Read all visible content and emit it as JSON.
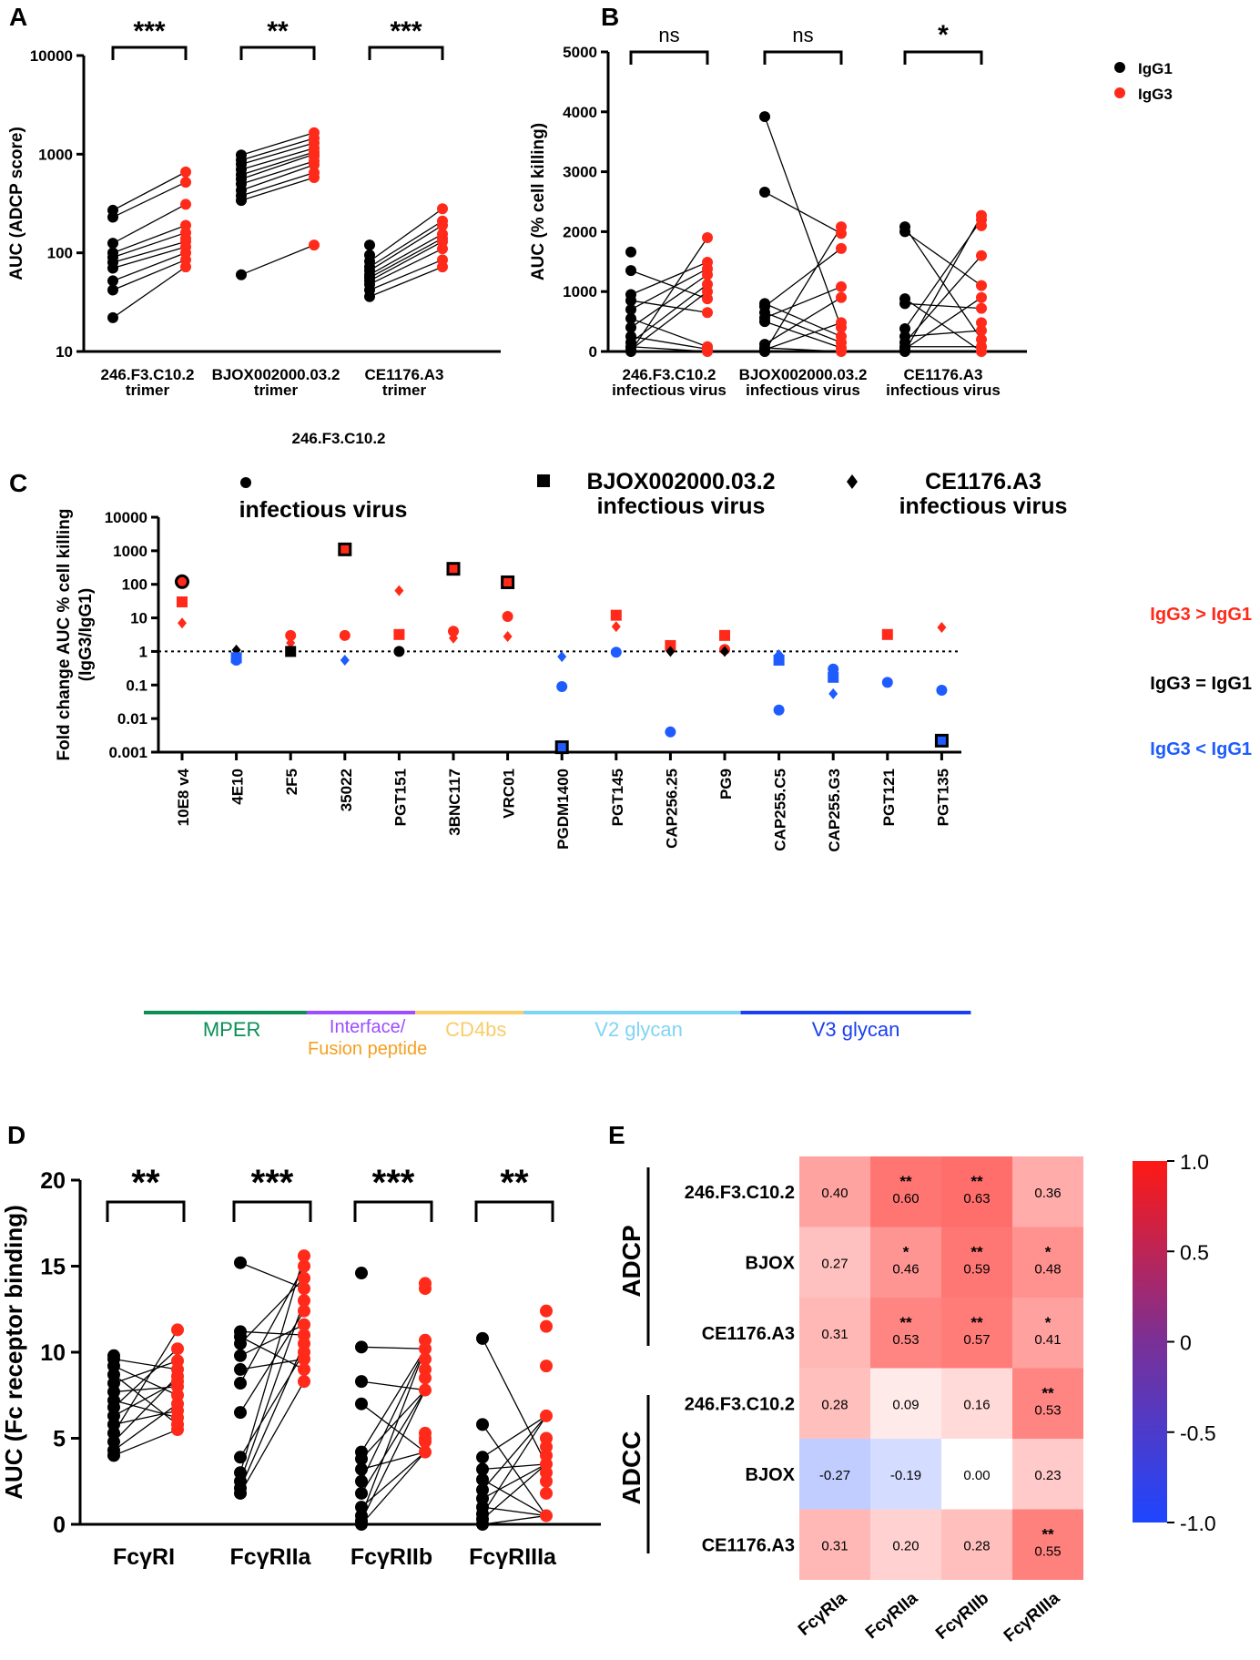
{
  "colors": {
    "igg1": "#000000",
    "igg3": "#ff2a1a",
    "blue": "#1e5cff",
    "mper": "#0b8f57",
    "interface": "#9b4dff",
    "fusion": "#f5a021",
    "cd4bs": "#f8cd6a",
    "v2": "#7fd4f5",
    "v3": "#1a3ff0"
  },
  "chart_data": [
    {
      "panel": "A",
      "type": "scatter",
      "scale": "log",
      "ylabel": "AUC (ADCP score)",
      "ylim": [
        10,
        10000
      ],
      "yticks": [
        "10",
        "100",
        "1000",
        "10000"
      ],
      "categories": [
        {
          "line1": "246.F3.C10.2",
          "line2": "trimer",
          "sig": "***"
        },
        {
          "line1": "BJOX002000.03.2",
          "line2": "trimer",
          "sig": "**"
        },
        {
          "line1": "CE1176.A3",
          "line2": "trimer",
          "sig": "***"
        }
      ],
      "series": [
        {
          "name": "IgG1",
          "values": [
            [
              22,
              42,
              52,
              70,
              80,
              90,
              100,
              125,
              230,
              270
            ],
            [
              60,
              340,
              380,
              430,
              500,
              560,
              620,
              700,
              790,
              870,
              980
            ],
            [
              36,
              42,
              48,
              52,
              56,
              60,
              66,
              72,
              82,
              95,
              120
            ]
          ]
        },
        {
          "name": "IgG3",
          "values": [
            [
              72,
              85,
              100,
              115,
              130,
              140,
              160,
              190,
              310,
              520,
              660
            ],
            [
              120,
              580,
              650,
              780,
              850,
              950,
              1000,
              1050,
              1150,
              1300,
              1450,
              1650
            ],
            [
              72,
              85,
              110,
              130,
              140,
              155,
              190,
              210,
              280
            ]
          ]
        }
      ]
    },
    {
      "panel": "B",
      "type": "scatter",
      "ylabel": "AUC (% cell killing)",
      "ylim": [
        0,
        5000
      ],
      "yticks": [
        "0",
        "1000",
        "2000",
        "3000",
        "4000",
        "5000"
      ],
      "legend": [
        "IgG1",
        "IgG3"
      ],
      "categories": [
        {
          "line1": "246.F3.C10.2",
          "line2": "infectious virus",
          "sig": "ns"
        },
        {
          "line1": "BJOX002000.03.2",
          "line2": "infectious virus",
          "sig": "ns"
        },
        {
          "line1": "CE1176.A3",
          "line2": "infectious virus",
          "sig": "*"
        }
      ],
      "series": [
        {
          "name": "IgG1",
          "values": [
            [
              0,
              30,
              80,
              150,
              250,
              400,
              550,
              700,
              850,
              950,
              1350,
              1660
            ],
            [
              0,
              30,
              60,
              120,
              500,
              560,
              650,
              750,
              800,
              2660,
              3920
            ],
            [
              0,
              40,
              80,
              150,
              250,
              380,
              800,
              880,
              2000,
              2080
            ]
          ]
        },
        {
          "name": "IgG3",
          "values": [
            [
              0,
              40,
              80,
              650,
              880,
              1000,
              1120,
              1280,
              1380,
              1490,
              1900
            ],
            [
              0,
              60,
              150,
              250,
              400,
              480,
              900,
              1080,
              1720,
              1970,
              2080
            ],
            [
              0,
              80,
              200,
              350,
              480,
              720,
              900,
              1100,
              1600,
              2100,
              2200,
              2270
            ]
          ]
        }
      ]
    },
    {
      "panel": "C",
      "type": "scatter",
      "scale": "log",
      "ylabel": [
        "Fold change AUC % cell killing",
        "(IgG3/IgG1)"
      ],
      "ylim": [
        0.001,
        10000
      ],
      "yticks": [
        "0.001",
        "0.01",
        "0.1",
        "1",
        "10",
        "100",
        "1000",
        "10000"
      ],
      "reference_line": 1,
      "legend": [
        {
          "marker": "circle",
          "line1": "246.F3.C10.2",
          "line2": "infectious virus"
        },
        {
          "marker": "square",
          "line1": "BJOX002000.03.2",
          "line2": "infectious virus"
        },
        {
          "marker": "diamond",
          "line1": "CE1176.A3",
          "line2": "infectious virus"
        }
      ],
      "annotations": {
        "above": "IgG3 > IgG1",
        "equal": "IgG3 = IgG1",
        "below": "IgG3 < IgG1"
      },
      "categories": [
        "10E8 v4",
        "4E10",
        "2F5",
        "35022",
        "PGT151",
        "3BNC117",
        "VRC01",
        "PGDM1400",
        "PGT145",
        "CAP256.25",
        "PG9",
        "CAP255.C5",
        "CAP255.G3",
        "PGT121",
        "PGT135"
      ],
      "points": [
        {
          "cat": 0,
          "shape": "circle",
          "value": 120,
          "color": "red",
          "outline": true
        },
        {
          "cat": 0,
          "shape": "square",
          "value": 30,
          "color": "red"
        },
        {
          "cat": 0,
          "shape": "diamond",
          "value": 7,
          "color": "red"
        },
        {
          "cat": 1,
          "shape": "diamond",
          "value": 1.1,
          "color": "black"
        },
        {
          "cat": 1,
          "shape": "square",
          "value": 0.65,
          "color": "blue"
        },
        {
          "cat": 1,
          "shape": "circle",
          "value": 0.55,
          "color": "blue"
        },
        {
          "cat": 2,
          "shape": "circle",
          "value": 3,
          "color": "red"
        },
        {
          "cat": 2,
          "shape": "diamond",
          "value": 1.8,
          "color": "red"
        },
        {
          "cat": 2,
          "shape": "square",
          "value": 1,
          "color": "black"
        },
        {
          "cat": 3,
          "shape": "square",
          "value": 1100,
          "color": "red",
          "outline": true
        },
        {
          "cat": 3,
          "shape": "circle",
          "value": 3,
          "color": "red"
        },
        {
          "cat": 3,
          "shape": "diamond",
          "value": 0.55,
          "color": "blue"
        },
        {
          "cat": 4,
          "shape": "diamond",
          "value": 65,
          "color": "red"
        },
        {
          "cat": 4,
          "shape": "square",
          "value": 3.2,
          "color": "red"
        },
        {
          "cat": 4,
          "shape": "circle",
          "value": 1,
          "color": "black"
        },
        {
          "cat": 5,
          "shape": "square",
          "value": 290,
          "color": "red",
          "outline": true
        },
        {
          "cat": 5,
          "shape": "circle",
          "value": 4,
          "color": "red"
        },
        {
          "cat": 5,
          "shape": "diamond",
          "value": 2.5,
          "color": "red"
        },
        {
          "cat": 6,
          "shape": "square",
          "value": 115,
          "color": "red",
          "outline": true
        },
        {
          "cat": 6,
          "shape": "circle",
          "value": 11,
          "color": "red"
        },
        {
          "cat": 6,
          "shape": "diamond",
          "value": 2.8,
          "color": "red"
        },
        {
          "cat": 7,
          "shape": "diamond",
          "value": 0.7,
          "color": "blue"
        },
        {
          "cat": 7,
          "shape": "circle",
          "value": 0.09,
          "color": "blue"
        },
        {
          "cat": 7,
          "shape": "square",
          "value": 0.0014,
          "color": "blue",
          "outline": true
        },
        {
          "cat": 8,
          "shape": "square",
          "value": 12,
          "color": "red"
        },
        {
          "cat": 8,
          "shape": "diamond",
          "value": 5.5,
          "color": "red"
        },
        {
          "cat": 8,
          "shape": "circle",
          "value": 0.95,
          "color": "blue"
        },
        {
          "cat": 9,
          "shape": "square",
          "value": 1.5,
          "color": "red"
        },
        {
          "cat": 9,
          "shape": "diamond",
          "value": 1,
          "color": "black"
        },
        {
          "cat": 9,
          "shape": "circle",
          "value": 0.004,
          "color": "blue"
        },
        {
          "cat": 10,
          "shape": "square",
          "value": 3,
          "color": "red"
        },
        {
          "cat": 10,
          "shape": "circle",
          "value": 1.15,
          "color": "red"
        },
        {
          "cat": 10,
          "shape": "diamond",
          "value": 1,
          "color": "black"
        },
        {
          "cat": 11,
          "shape": "diamond",
          "value": 0.8,
          "color": "blue"
        },
        {
          "cat": 11,
          "shape": "square",
          "value": 0.55,
          "color": "blue"
        },
        {
          "cat": 11,
          "shape": "circle",
          "value": 0.018,
          "color": "blue"
        },
        {
          "cat": 12,
          "shape": "circle",
          "value": 0.3,
          "color": "blue"
        },
        {
          "cat": 12,
          "shape": "square",
          "value": 0.17,
          "color": "blue"
        },
        {
          "cat": 12,
          "shape": "diamond",
          "value": 0.055,
          "color": "blue"
        },
        {
          "cat": 13,
          "shape": "square",
          "value": 3.2,
          "color": "red"
        },
        {
          "cat": 13,
          "shape": "circle",
          "value": 0.12,
          "color": "blue"
        },
        {
          "cat": 14,
          "shape": "diamond",
          "value": 5.2,
          "color": "red"
        },
        {
          "cat": 14,
          "shape": "circle",
          "value": 0.07,
          "color": "blue"
        },
        {
          "cat": 14,
          "shape": "square",
          "value": 0.0022,
          "color": "blue",
          "outline": true
        }
      ],
      "groups": [
        {
          "label": "MPER",
          "from": 0,
          "to": 2,
          "color": "mper"
        },
        {
          "label": "Interface/",
          "label2": "Fusion peptide",
          "from": 3,
          "to": 4,
          "color": "interface"
        },
        {
          "label": "CD4bs",
          "from": 5,
          "to": 6,
          "color": "cd4bs"
        },
        {
          "label": "V2 glycan",
          "from": 7,
          "to": 10,
          "color": "v2"
        },
        {
          "label": "V3 glycan",
          "from": 11,
          "to": 14,
          "color": "v3"
        }
      ]
    },
    {
      "panel": "D",
      "type": "scatter",
      "ylabel": "AUC (Fc receptor binding)",
      "ylim": [
        0,
        20
      ],
      "yticks": [
        "0",
        "5",
        "10",
        "15",
        "20"
      ],
      "categories": [
        {
          "label": "FcγRI",
          "sig": "**"
        },
        {
          "label": "FcγRIIa",
          "sig": "***"
        },
        {
          "label": "FcγRIIb",
          "sig": "***"
        },
        {
          "label": "FcγRIIIa",
          "sig": "**"
        }
      ],
      "series": [
        {
          "name": "IgG1",
          "values": [
            [
              4,
              4.3,
              4.8,
              5.3,
              5.8,
              6.3,
              6.8,
              7.2,
              7.7,
              8.2,
              8.7,
              9.2,
              9.6,
              9.8
            ],
            [
              1.8,
              2.1,
              2.5,
              3,
              3.9,
              6.5,
              8.2,
              9,
              9.8,
              10.5,
              10.9,
              11.2,
              15.2
            ],
            [
              0,
              0.2,
              0.5,
              1,
              1.8,
              2.5,
              3.2,
              3.8,
              4.2,
              7,
              8.3,
              10.3,
              14.6
            ],
            [
              0,
              0.3,
              0.6,
              1,
              1.5,
              2,
              2.6,
              3.2,
              3.9,
              5.8,
              10.8
            ]
          ]
        },
        {
          "name": "IgG3",
          "values": [
            [
              5.5,
              5.8,
              6.2,
              6.6,
              7,
              7.5,
              8,
              8.3,
              8.6,
              9,
              9.5,
              10.2,
              11.3
            ],
            [
              8.3,
              9,
              9.6,
              10,
              10.5,
              11,
              11.6,
              12.4,
              13,
              13.7,
              14.3,
              15,
              15.6
            ],
            [
              4.2,
              4.8,
              5,
              5.3,
              7.8,
              8.5,
              9,
              9.6,
              10.2,
              10.7,
              13.7,
              14
            ],
            [
              0.5,
              1.8,
              2.5,
              3,
              3.5,
              4,
              4.5,
              5,
              6.3,
              9.2,
              11.5,
              12.4
            ]
          ]
        }
      ]
    },
    {
      "panel": "E",
      "type": "heatmap",
      "columns": [
        "FcγRIa",
        "FcγRIIa",
        "FcγRIIb",
        "FcγRIIIa"
      ],
      "row_groups": [
        {
          "label": "ADCP",
          "rows": [
            0,
            1,
            2
          ]
        },
        {
          "label": "ADCC",
          "rows": [
            3,
            4,
            5
          ]
        }
      ],
      "rows": [
        "246.F3.C10.2",
        "BJOX",
        "CE1176.A3",
        "246.F3.C10.2",
        "BJOX",
        "CE1176.A3"
      ],
      "values": [
        [
          0.4,
          0.6,
          0.63,
          0.36
        ],
        [
          0.27,
          0.46,
          0.59,
          0.48
        ],
        [
          0.31,
          0.53,
          0.57,
          0.41
        ],
        [
          0.28,
          0.09,
          0.16,
          0.53
        ],
        [
          -0.27,
          -0.19,
          0.0,
          0.23
        ],
        [
          0.31,
          0.2,
          0.28,
          0.55
        ]
      ],
      "labels": [
        [
          "0.40",
          "0.60",
          "0.63",
          "0.36"
        ],
        [
          "0.27",
          "0.46",
          "0.59",
          "0.48"
        ],
        [
          "0.31",
          "0.53",
          "0.57",
          "0.41"
        ],
        [
          "0.28",
          "0.09",
          "0.16",
          "0.53"
        ],
        [
          "-0.27",
          "-0.19",
          "0.00",
          "0.23"
        ],
        [
          "0.31",
          "0.20",
          "0.28",
          "0.55"
        ]
      ],
      "significance": [
        [
          "",
          "**",
          "**",
          ""
        ],
        [
          "",
          "*",
          "**",
          "*"
        ],
        [
          "",
          "**",
          "**",
          "*"
        ],
        [
          "",
          "",
          "",
          "**"
        ],
        [
          "",
          "",
          "",
          ""
        ],
        [
          "",
          "",
          "",
          "**"
        ]
      ],
      "colorbar": {
        "min": -1.0,
        "max": 1.0,
        "ticks": [
          "1.0",
          "0.5",
          "0",
          "-0.5",
          "-1.0"
        ]
      }
    }
  ]
}
